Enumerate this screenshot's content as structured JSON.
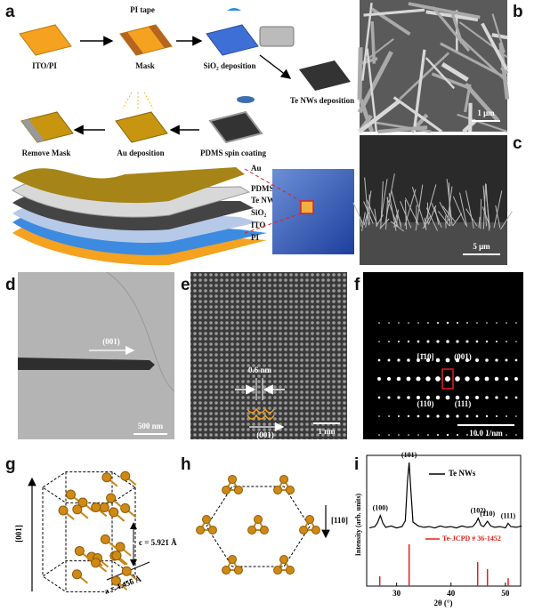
{
  "panel_labels": [
    "a",
    "b",
    "c",
    "d",
    "e",
    "f",
    "g",
    "h",
    "i"
  ],
  "a": {
    "steps": [
      "ITO/PI",
      "Mask",
      "SiO₂ deposition",
      "Te NWs deposition",
      "PDMS spin coating",
      "Au deposition",
      "Remove Mask"
    ],
    "pi_tape": "PI tape",
    "layers": [
      "Au",
      "PDMS",
      "Te NWs",
      "SiO₂",
      "ITO",
      "PI"
    ]
  },
  "b": {
    "scale": "1 μm"
  },
  "c": {
    "scale": "5 μm"
  },
  "d": {
    "direction": "(001)",
    "scale": "500 nm"
  },
  "e": {
    "spacing": "0.6 nm",
    "direction": "(001)",
    "scale": "1 nm"
  },
  "f": {
    "spots": [
      "[1̄10]",
      "(001)",
      "(110)",
      "(111)"
    ],
    "scale": "10.0 1/nm"
  },
  "g": {
    "axis": "[001]",
    "c": "c = 5.921 Å",
    "a": "a = 4.456 Å"
  },
  "h": {
    "axis": "[110]"
  },
  "chart_data": {
    "type": "line",
    "xlabel": "2θ (°)",
    "ylabel": "Intensity (arb. units)",
    "xlim": [
      24.5,
      52.8
    ],
    "ylim": [
      0,
      200
    ],
    "xticks": [
      30,
      40,
      50
    ],
    "series": [
      {
        "name": "Te NWs",
        "color": "#000000",
        "style": "line",
        "x": [
          25,
          26,
          26.5,
          27,
          27.5,
          28,
          29,
          30,
          31,
          31.6,
          32,
          32.3,
          32.6,
          33,
          34,
          35,
          36,
          37,
          38,
          39,
          40,
          41,
          42,
          43,
          44,
          44.6,
          45,
          45.5,
          46,
          46.7,
          47.3,
          48,
          49,
          50,
          50.5,
          51,
          52,
          53
        ],
        "values": [
          89,
          91,
          97,
          108,
          96,
          90,
          92,
          89,
          91,
          100,
          160,
          189,
          150,
          98,
          92,
          90,
          91,
          89,
          92,
          90,
          91,
          89,
          92,
          90,
          91,
          97,
          104,
          93,
          91,
          99,
          92,
          90,
          91,
          89,
          96,
          91,
          90,
          92
        ]
      },
      {
        "name": "Te-JCPD # 36-1452",
        "color": "#e0201b",
        "style": "stem",
        "x": [
          26.9,
          32.3,
          44.9,
          46.7,
          50.5
        ],
        "values": [
          15,
          64,
          37,
          26,
          12
        ]
      }
    ],
    "annotations": [
      {
        "text": "(100)",
        "x": 27
      },
      {
        "text": "(101)",
        "x": 32.3
      },
      {
        "text": "(102)",
        "x": 45
      },
      {
        "text": "(110)",
        "x": 46.7
      },
      {
        "text": "(111)",
        "x": 50.5
      }
    ]
  }
}
